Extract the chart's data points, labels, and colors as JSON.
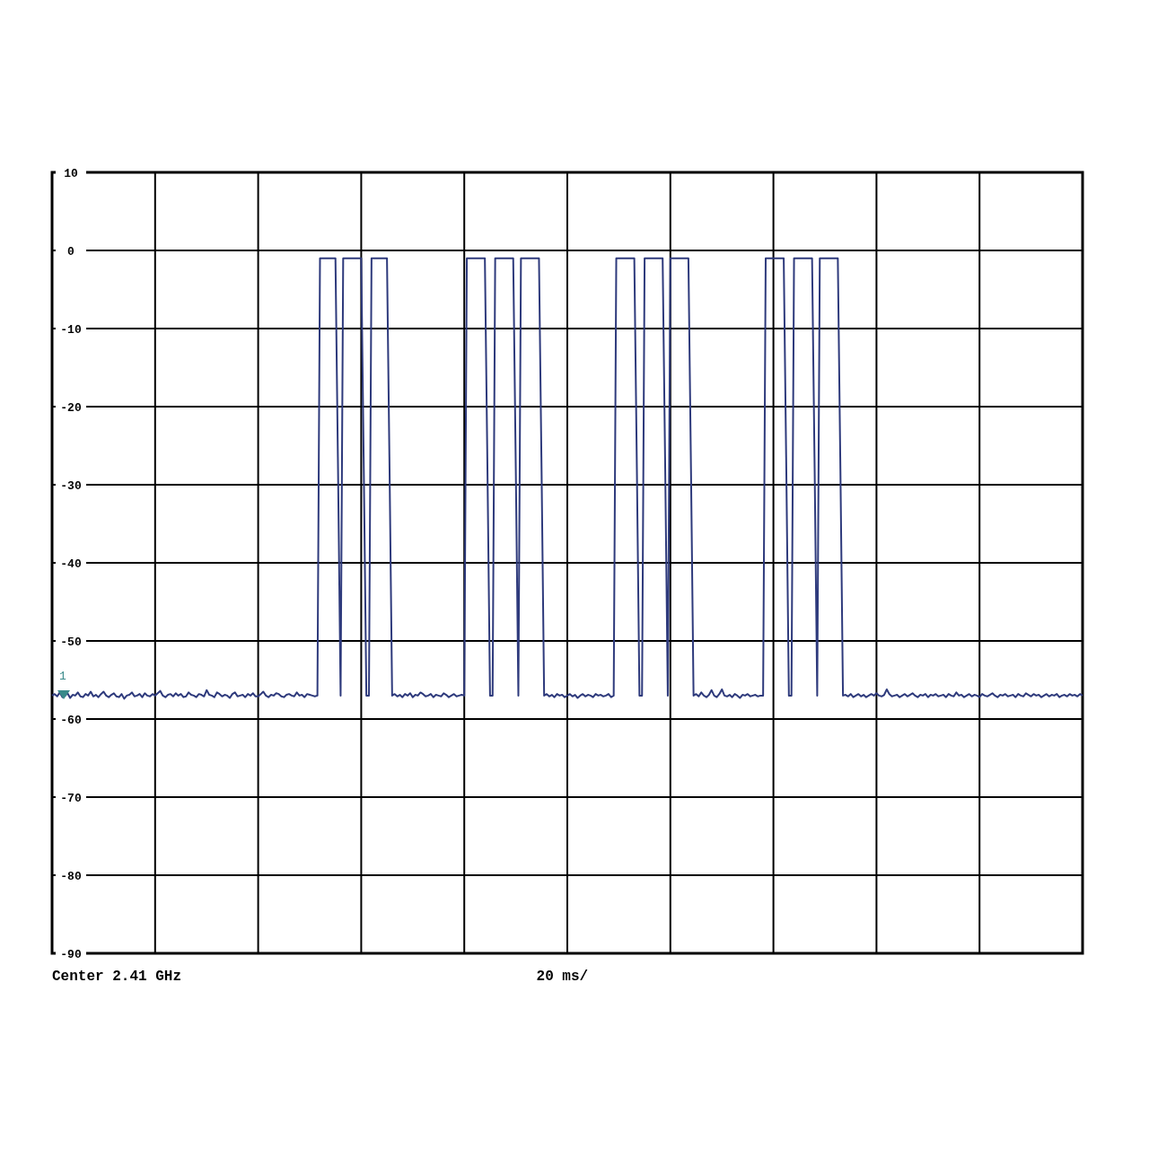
{
  "chart_data": {
    "type": "line",
    "color": "#2e3a7c",
    "categories": [
      null,
      null,
      null,
      null,
      null,
      null,
      null,
      null,
      null,
      null,
      null,
      null,
      null,
      null,
      null,
      null,
      null,
      null,
      null,
      null,
      null,
      null,
      null,
      null,
      null,
      null,
      null,
      null,
      null,
      null,
      null,
      null,
      null,
      null,
      null,
      null,
      null,
      null,
      null,
      null,
      null,
      null,
      null,
      null,
      null,
      null,
      null,
      null,
      null,
      null,
      null,
      null,
      null,
      null,
      null,
      null,
      null,
      null,
      null,
      null,
      null,
      null,
      null,
      null,
      null,
      null,
      null,
      null,
      null,
      null,
      null,
      null,
      null,
      null,
      null,
      null,
      null,
      null,
      null,
      null,
      null,
      null,
      null,
      null,
      null,
      null,
      null,
      null,
      null,
      null,
      null,
      null,
      null,
      null,
      null,
      null,
      null,
      null,
      null,
      null,
      null,
      null,
      null,
      null,
      null,
      null,
      null,
      null,
      null,
      null,
      null,
      null,
      null,
      null,
      null,
      null,
      null,
      null,
      null,
      null,
      null,
      null,
      null,
      null,
      null,
      null,
      null,
      null,
      null,
      null,
      null,
      null,
      null,
      null,
      null,
      null,
      null,
      null,
      null,
      null,
      null,
      null,
      null,
      null,
      null,
      null,
      null,
      null,
      null,
      null,
      null,
      null,
      null,
      null,
      null,
      null,
      null,
      null,
      null,
      null,
      null,
      null,
      null,
      null,
      null,
      null,
      null,
      null,
      null,
      null,
      null,
      null,
      null,
      null,
      null,
      null,
      null,
      null,
      null,
      null,
      null,
      null,
      null,
      null,
      null,
      null,
      null,
      null,
      null,
      null,
      null,
      null,
      null,
      null,
      null,
      null,
      null,
      null,
      null,
      null,
      null,
      null,
      null,
      null,
      null,
      null,
      null,
      null,
      null,
      null,
      null,
      null,
      null,
      null,
      null,
      null,
      null,
      null,
      null,
      null,
      null,
      null,
      null,
      null,
      null,
      null,
      null,
      null,
      null,
      null,
      null,
      null,
      null,
      null,
      null,
      null,
      null,
      null,
      null,
      null,
      null,
      null,
      null,
      null,
      null,
      null,
      null,
      null,
      null,
      null,
      null,
      null,
      null,
      null,
      null,
      null,
      null,
      null,
      null,
      null,
      null,
      null,
      null,
      null,
      null,
      null,
      null,
      null,
      null,
      null,
      null,
      null,
      null,
      null,
      null,
      null,
      null,
      null,
      null,
      null,
      null,
      null,
      null,
      null,
      null,
      null,
      null,
      null,
      null,
      null,
      null,
      null,
      null,
      null,
      null,
      null,
      null,
      null,
      null,
      null,
      null,
      null,
      null,
      null,
      null,
      null,
      null,
      null,
      null,
      null,
      null,
      null,
      null,
      null,
      null,
      null,
      null,
      null,
      null,
      null,
      null,
      null,
      null,
      null,
      null,
      null,
      null,
      null,
      null,
      null,
      null,
      null,
      null,
      null,
      null,
      null,
      null,
      null,
      null,
      null,
      null,
      null,
      null,
      null,
      null,
      null,
      null,
      null,
      null,
      null,
      null,
      null,
      null,
      null,
      null,
      null,
      null,
      null,
      null,
      null,
      null,
      null,
      null,
      null,
      null,
      null,
      null,
      null,
      null,
      null,
      null,
      null,
      null,
      null,
      null,
      null,
      null,
      null,
      null,
      null,
      null,
      null,
      null,
      null,
      null,
      null,
      null,
      null,
      null,
      null,
      null,
      null,
      null,
      null,
      null,
      null,
      null,
      null,
      null,
      null,
      null
    ],
    "values": [
      -57,
      -56.8,
      -57.1,
      -56.6,
      -57.2,
      -57,
      -56.7,
      -57.3,
      -56.9,
      -57,
      -56.6,
      -57.1,
      -57.2,
      -56.8,
      -57,
      -56.5,
      -57.1,
      -56.9,
      -57.2,
      -56.8,
      -56.5,
      -57,
      -57.2,
      -56.9,
      -56.7,
      -57.1,
      -57.2,
      -56.8,
      -57.4,
      -57,
      -56.9,
      -56.6,
      -57.1,
      -57,
      -56.8,
      -57.2,
      -56.7,
      -57,
      -57.1,
      -56.8,
      -57,
      -56.7,
      -56.4,
      -57,
      -57.2,
      -56.9,
      -56.8,
      -57.1,
      -56.7,
      -57,
      -56.8,
      -57.2,
      -57.1,
      -56.6,
      -56.9,
      -57,
      -57.2,
      -56.8,
      -56.9,
      -57.1,
      -56.3,
      -56.9,
      -57,
      -57.2,
      -56.6,
      -56.8,
      -57.1,
      -56.9,
      -57,
      -57.3,
      -56.8,
      -56.6,
      -57.1,
      -57,
      -56.9,
      -57.2,
      -56.8,
      -57,
      -56.7,
      -57.1,
      -57.1,
      -56.8,
      -56.5,
      -57,
      -57.2,
      -56.9,
      -57,
      -56.7,
      -56.8,
      -57.1,
      -57.2,
      -56.9,
      -56.8,
      -57,
      -57.1,
      -56.6,
      -57,
      -56.9,
      -57.2,
      -56.8,
      -56.9,
      -57,
      -57.1,
      -57,
      -1,
      -1,
      -1,
      -1,
      -1,
      -1,
      -1,
      -28,
      -57,
      -1,
      -1,
      -1,
      -1,
      -1,
      -1,
      -1,
      -1,
      -28,
      -57,
      -57,
      -1,
      -1,
      -1,
      -1,
      -1,
      -1,
      -1,
      -28,
      -57,
      -56.8,
      -57.1,
      -56.9,
      -57.2,
      -56.8,
      -57,
      -56.7,
      -57.2,
      -56.9,
      -57,
      -56.6,
      -56.8,
      -57.1,
      -57,
      -56.8,
      -57.2,
      -56.9,
      -57,
      -57.1,
      -56.7,
      -56.9,
      -57.2,
      -57,
      -56.8,
      -57.1,
      -57,
      -56.9,
      -57,
      -1,
      -1,
      -1,
      -1,
      -1,
      -1,
      -1,
      -1,
      -28,
      -57,
      -57,
      -1,
      -1,
      -1,
      -1,
      -1,
      -1,
      -1,
      -1,
      -28,
      -57,
      -1,
      -1,
      -1,
      -1,
      -1,
      -1,
      -1,
      -1,
      -28,
      -57,
      -56.8,
      -57.1,
      -56.9,
      -57.2,
      -56.8,
      -57,
      -56.9,
      -57.2,
      -57,
      -56.8,
      -57.1,
      -56.9,
      -57.3,
      -57,
      -56.8,
      -57.1,
      -56.9,
      -57,
      -57.2,
      -56.8,
      -57,
      -56.9,
      -57.1,
      -57,
      -56.8,
      -57.2,
      -57,
      -1,
      -1,
      -1,
      -1,
      -1,
      -1,
      -1,
      -1,
      -28,
      -57,
      -57,
      -1,
      -1,
      -1,
      -1,
      -1,
      -1,
      -1,
      -1,
      -28,
      -57,
      -1,
      -1,
      -1,
      -1,
      -1,
      -1,
      -1,
      -1,
      -28,
      -57,
      -56.8,
      -57.1,
      -56.6,
      -57,
      -57.2,
      -56.9,
      -56.3,
      -57,
      -57.2,
      -56.8,
      -56.2,
      -57,
      -57.1,
      -56.9,
      -57.2,
      -56.8,
      -57,
      -57.3,
      -56.9,
      -57,
      -56.8,
      -57.1,
      -57,
      -56.9,
      -57.1,
      -57,
      -57,
      -1,
      -1,
      -1,
      -1,
      -1,
      -1,
      -1,
      -1,
      -28,
      -57,
      -57,
      -1,
      -1,
      -1,
      -1,
      -1,
      -1,
      -1,
      -1,
      -28,
      -57,
      -1,
      -1,
      -1,
      -1,
      -1,
      -1,
      -1,
      -1,
      -28,
      -57,
      -56.9,
      -57.1,
      -56.8,
      -57.2,
      -57,
      -56.8,
      -57.1,
      -56.9,
      -57.2,
      -57,
      -56.8,
      -57,
      -56.7,
      -57,
      -57.1,
      -56.9,
      -56.2,
      -56.8,
      -57.1,
      -57,
      -56.9,
      -57.2,
      -57,
      -56.8,
      -57.1,
      -56.9,
      -56.7,
      -57,
      -57.2,
      -56.9,
      -57,
      -56.8,
      -57.2,
      -56.9,
      -57,
      -56.8,
      -57.1,
      -57,
      -56.9,
      -57.2,
      -56.8,
      -57,
      -57.1,
      -56.6,
      -57,
      -56.9,
      -57.2,
      -57,
      -56.8,
      -57.1,
      -56.9,
      -57,
      -57.2,
      -56.8,
      -57,
      -57.1,
      -56.9,
      -56.7,
      -57,
      -57.2,
      -56.9,
      -57,
      -56.8,
      -57.1,
      -57,
      -56.9,
      -57.2,
      -56.8,
      -57,
      -57.1,
      -56.7,
      -56.9,
      -57.1,
      -56.8,
      -57,
      -56.9,
      -57.2,
      -57,
      -56.8,
      -57.1,
      -56.9,
      -57,
      -56.8,
      -57.2,
      -57,
      -56.9,
      -57.1,
      -56.8,
      -57,
      -56.9,
      -57.1,
      -56.8,
      -57
    ],
    "ylim": [
      -90,
      10
    ],
    "yticks": [
      -90,
      -80,
      -70,
      -60,
      -50,
      -40,
      -30,
      -20,
      -10,
      0,
      10
    ],
    "tick_labels": "y",
    "grid": true,
    "line_style": "solid",
    "annotations": [
      "Center 2.41 GHz",
      "20 ms/",
      "1"
    ]
  }
}
